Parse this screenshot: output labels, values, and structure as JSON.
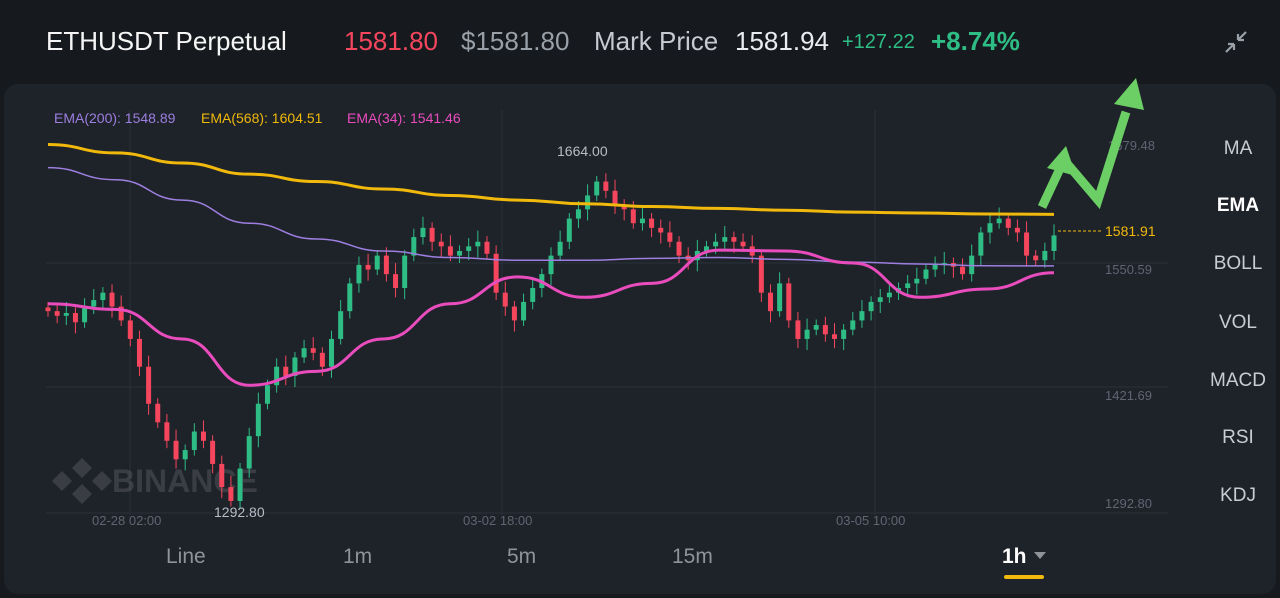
{
  "header": {
    "title": "ETHUSDT Perpetual",
    "last_price": "1581.80",
    "usd_price": "$1581.80",
    "mark_price_label": "Mark Price",
    "mark_price": "1581.94",
    "change": "+127.22",
    "change_percent": "+8.74%",
    "collapse_icon": "collapse-icon"
  },
  "colors": {
    "up": "#2ebd85",
    "down": "#f6465d",
    "ema200": "#9d7fe0",
    "ema568": "#f0b90b",
    "ema34": "#e94dbd",
    "annotation_arrow": "#6ccf66"
  },
  "legend": {
    "ema200": "EMA(200): 1548.89",
    "ema568": "EMA(568): 1604.51",
    "ema34": "EMA(34): 1541.46"
  },
  "watermark": "BINANCE",
  "chart_data": {
    "type": "candlestick",
    "price_axis_labels": [
      "1679.48",
      "1550.59",
      "1421.69",
      "1292.80"
    ],
    "time_axis_labels": [
      "02-28 02:00",
      "03-02 18:00",
      "03-05 10:00"
    ],
    "high_label": "1664.00",
    "low_label": "1292.80",
    "current_price_label": "1581.91",
    "ylim": [
      1292.8,
      1679.48
    ],
    "ema568": [
      1680,
      1671,
      1660,
      1648,
      1640,
      1632,
      1625,
      1620,
      1616,
      1613,
      1611,
      1609,
      1607,
      1606,
      1605,
      1604.51
    ],
    "ema200": [
      1655,
      1642,
      1620,
      1595,
      1578,
      1565,
      1558,
      1555,
      1555,
      1557,
      1558,
      1556,
      1553,
      1551,
      1549,
      1548.89
    ],
    "ema34": [
      1508,
      1502,
      1470,
      1420,
      1435,
      1470,
      1508,
      1537,
      1515,
      1530,
      1566,
      1565,
      1552,
      1515,
      1524,
      1541.46
    ],
    "closes": [
      1500,
      1495,
      1498,
      1488,
      1505,
      1512,
      1520,
      1505,
      1490,
      1470,
      1440,
      1400,
      1380,
      1360,
      1340,
      1350,
      1370,
      1360,
      1335,
      1310,
      1295,
      1330,
      1365,
      1400,
      1420,
      1440,
      1430,
      1450,
      1460,
      1455,
      1440,
      1470,
      1500,
      1530,
      1550,
      1545,
      1560,
      1540,
      1525,
      1560,
      1580,
      1590,
      1575,
      1570,
      1560,
      1565,
      1570,
      1575,
      1562,
      1520,
      1505,
      1490,
      1510,
      1525,
      1540,
      1560,
      1575,
      1600,
      1610,
      1625,
      1640,
      1630,
      1615,
      1610,
      1595,
      1600,
      1590,
      1585,
      1575,
      1560,
      1555,
      1565,
      1570,
      1575,
      1580,
      1575,
      1570,
      1560,
      1520,
      1500,
      1530,
      1490,
      1470,
      1480,
      1485,
      1475,
      1470,
      1480,
      1490,
      1500,
      1510,
      1515,
      1520,
      1525,
      1530,
      1535,
      1545,
      1550,
      1552,
      1548,
      1540,
      1560,
      1585,
      1595,
      1600,
      1590,
      1585,
      1560,
      1555,
      1565,
      1581.8
    ]
  },
  "indicators": [
    "MA",
    "EMA",
    "BOLL",
    "VOL",
    "MACD",
    "RSI",
    "KDJ"
  ],
  "active_indicator": "EMA",
  "timeframes": [
    "Line",
    "1m",
    "5m",
    "15m",
    "1h"
  ],
  "active_timeframe": "1h"
}
